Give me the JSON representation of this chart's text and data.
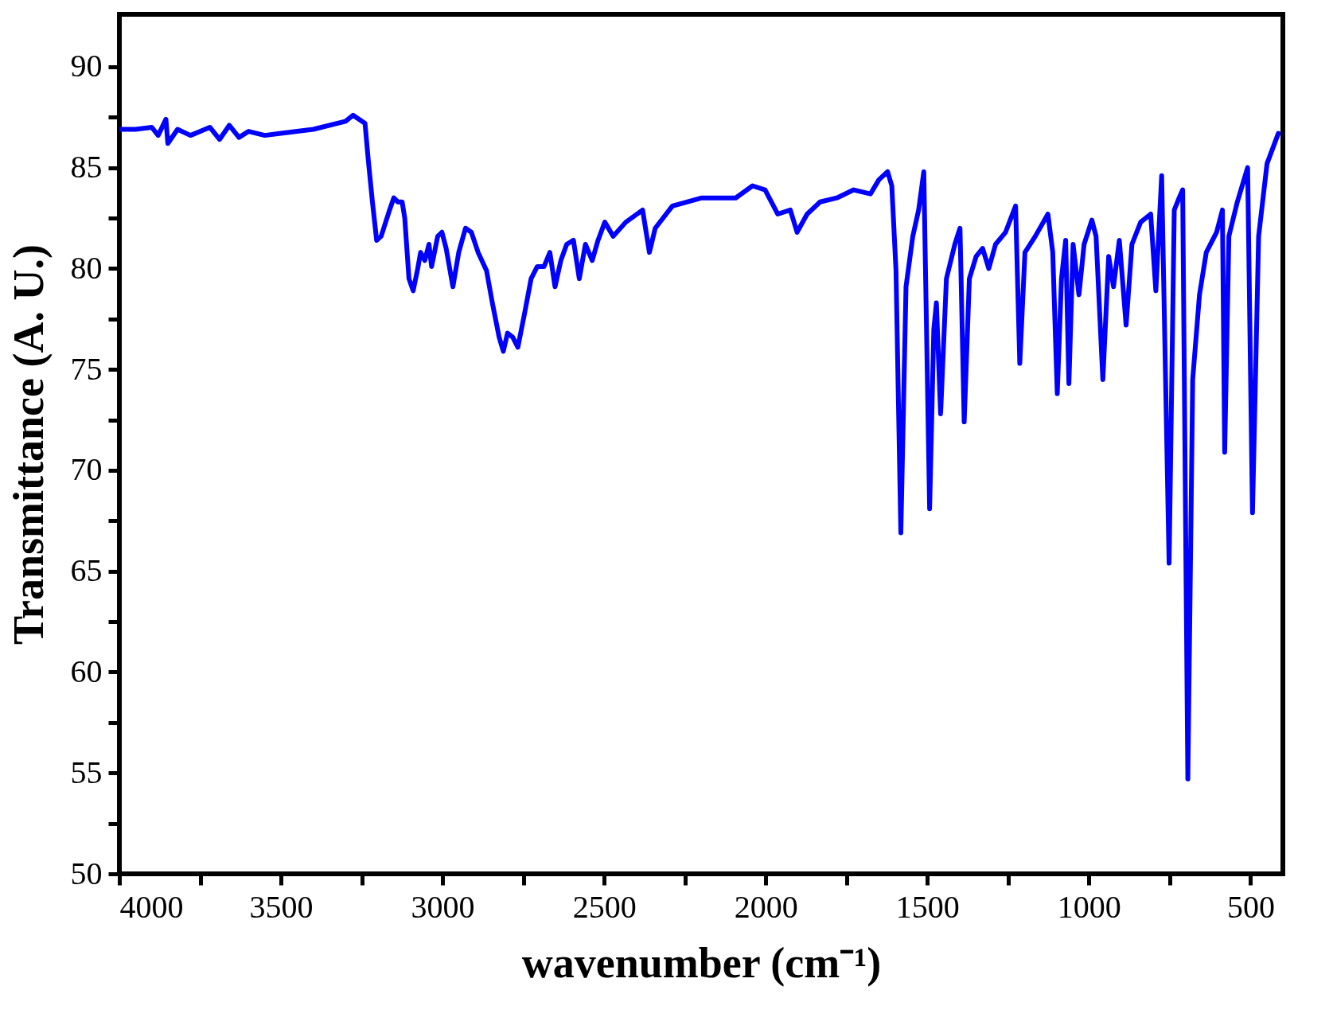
{
  "chart_data": {
    "type": "line",
    "xlabel": "wavenumber (cm⁻¹)",
    "ylabel": "Transmittance (A. U.)",
    "xlim": [
      4000,
      400
    ],
    "ylim": [
      50,
      92.6
    ],
    "xticks": [
      4000,
      {
        "value": 3750,
        "label": null
      },
      3500,
      {
        "value": 3250,
        "label": null
      },
      3000,
      {
        "value": 2750,
        "label": null
      },
      2500,
      {
        "value": 2250,
        "label": null
      },
      2000,
      {
        "value": 1750,
        "label": null
      },
      1500,
      {
        "value": 1250,
        "label": null
      },
      1000,
      {
        "value": 750,
        "label": null
      },
      500
    ],
    "yticks": [
      50,
      {
        "value": 52.5,
        "label": null
      },
      55,
      {
        "value": 57.5,
        "label": null
      },
      60,
      {
        "value": 62.5,
        "label": null
      },
      65,
      {
        "value": 67.5,
        "label": null
      },
      70,
      {
        "value": 72.5,
        "label": null
      },
      75,
      {
        "value": 77.5,
        "label": null
      },
      80,
      {
        "value": 82.5,
        "label": null
      },
      85,
      {
        "value": 87.5,
        "label": null
      },
      90
    ],
    "grid": false,
    "line_style": "solid",
    "x": [
      4000,
      3950,
      3900,
      3880,
      3856,
      3850,
      3820,
      3780,
      3720,
      3690,
      3660,
      3630,
      3600,
      3550,
      3500,
      3400,
      3300,
      3277,
      3240,
      3230,
      3217,
      3204,
      3190,
      3164,
      3151,
      3138,
      3125,
      3117,
      3104,
      3091,
      3078,
      3068,
      3055,
      3042,
      3034,
      3015,
      3002,
      2989,
      2968,
      2950,
      2929,
      2911,
      2890,
      2864,
      2846,
      2825,
      2812,
      2799,
      2783,
      2767,
      2746,
      2726,
      2707,
      2686,
      2668,
      2652,
      2634,
      2616,
      2595,
      2577,
      2558,
      2537,
      2519,
      2498,
      2472,
      2433,
      2381,
      2360,
      2342,
      2289,
      2198,
      2093,
      2041,
      2002,
      1963,
      1924,
      1903,
      1872,
      1832,
      1780,
      1728,
      1676,
      1650,
      1623,
      1610,
      1597,
      1582,
      1566,
      1545,
      1527,
      1511,
      1493,
      1480,
      1472,
      1459,
      1441,
      1415,
      1399,
      1386,
      1370,
      1349,
      1329,
      1310,
      1289,
      1258,
      1227,
      1214,
      1198,
      1166,
      1127,
      1112,
      1098,
      1085,
      1072,
      1062,
      1049,
      1031,
      1015,
      991,
      978,
      957,
      939,
      924,
      906,
      885,
      867,
      840,
      809,
      793,
      775,
      752,
      736,
      721,
      710,
      694,
      679,
      658,
      637,
      605,
      587,
      580,
      567,
      541,
      509,
      494,
      475,
      449,
      414
    ],
    "series": [
      {
        "color": "#0000ff",
        "values": [
          86.9,
          86.9,
          87.0,
          86.6,
          87.4,
          86.2,
          86.9,
          86.6,
          87.0,
          86.4,
          87.1,
          86.5,
          86.8,
          86.6,
          86.7,
          86.9,
          87.3,
          87.6,
          87.2,
          85.4,
          83.3,
          81.4,
          81.6,
          82.9,
          83.5,
          83.3,
          83.3,
          82.5,
          79.5,
          78.9,
          79.9,
          80.8,
          80.4,
          81.2,
          80.1,
          81.6,
          81.8,
          81.0,
          79.1,
          80.8,
          82.0,
          81.8,
          80.8,
          79.9,
          78.3,
          76.6,
          75.9,
          76.8,
          76.6,
          76.1,
          77.8,
          79.5,
          80.1,
          80.1,
          80.8,
          79.1,
          80.4,
          81.2,
          81.4,
          79.5,
          81.2,
          80.4,
          81.4,
          82.3,
          81.6,
          82.3,
          82.9,
          80.8,
          82.0,
          83.1,
          83.5,
          83.5,
          84.1,
          83.9,
          82.7,
          82.9,
          81.8,
          82.7,
          83.3,
          83.5,
          83.9,
          83.7,
          84.4,
          84.8,
          84.1,
          79.9,
          66.9,
          79.1,
          81.6,
          82.9,
          84.8,
          68.1,
          77.0,
          78.3,
          72.8,
          79.5,
          81.2,
          82.0,
          72.4,
          79.5,
          80.6,
          81.0,
          80.0,
          81.2,
          81.8,
          83.1,
          75.3,
          80.8,
          81.6,
          82.7,
          80.8,
          73.8,
          79.5,
          81.4,
          74.3,
          81.2,
          78.7,
          81.2,
          82.4,
          81.6,
          74.5,
          80.6,
          79.1,
          81.4,
          77.2,
          81.2,
          82.3,
          82.7,
          78.9,
          84.6,
          65.4,
          82.9,
          83.5,
          83.9,
          54.7,
          74.5,
          78.7,
          80.8,
          81.8,
          82.9,
          70.9,
          81.6,
          83.3,
          85.0,
          67.9,
          81.6,
          85.2,
          86.7
        ]
      }
    ]
  }
}
